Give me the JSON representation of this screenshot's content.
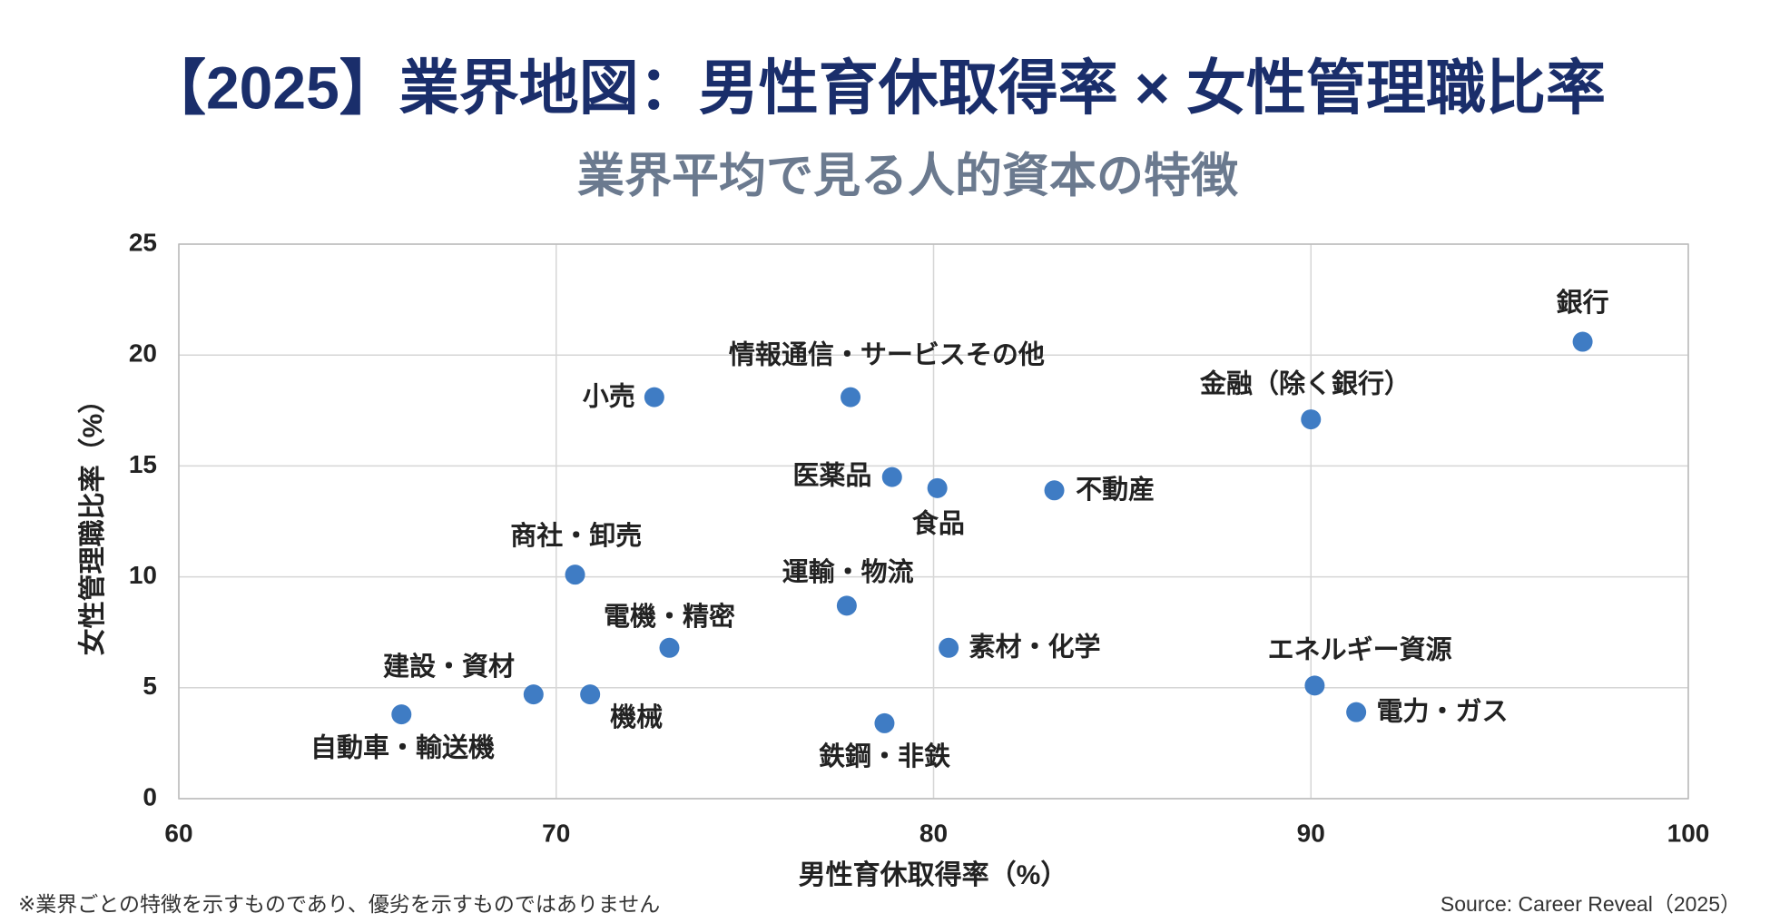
{
  "chart_data": {
    "type": "scatter",
    "title": "【2025】業界地図：男性育休取得率 × 女性管理職比率",
    "subtitle": "業界平均で見る人的資本の特徴",
    "x_label": "男性育休取得率（%）",
    "y_label": "女性管理職比率（%）",
    "labels": [
      "銀行",
      "金融（除く銀行）",
      "情報通信・サービスその他",
      "小売",
      "医薬品",
      "食品",
      "不動産",
      "商社・卸売",
      "運輸・物流",
      "電機・精密",
      "素材・化学",
      "建設・資材",
      "機械",
      "自動車・輸送機",
      "鉄鋼・非鉄",
      "エネルギー資源",
      "電力・ガス"
    ],
    "x": [
      97.2,
      90.0,
      77.8,
      72.6,
      78.9,
      80.1,
      83.2,
      70.5,
      77.7,
      73.0,
      80.4,
      69.4,
      70.9,
      65.9,
      78.7,
      90.1,
      91.2
    ],
    "values": [
      20.6,
      17.1,
      18.1,
      18.1,
      14.5,
      14.0,
      13.9,
      10.1,
      8.7,
      6.8,
      6.8,
      4.7,
      4.7,
      3.8,
      3.4,
      5.1,
      3.9
    ],
    "color": "#3f7cc4",
    "xlim": [
      60,
      100
    ],
    "xticks": [
      60,
      70,
      80,
      90,
      100
    ],
    "ylim": [
      0,
      25
    ],
    "yticks": [
      0,
      5,
      10,
      15,
      20,
      25
    ],
    "grid": true,
    "note": "※業界ごとの特徴を示すものであり、優劣を示すものではありません",
    "source": "Source: Career Reveal（2025）"
  }
}
